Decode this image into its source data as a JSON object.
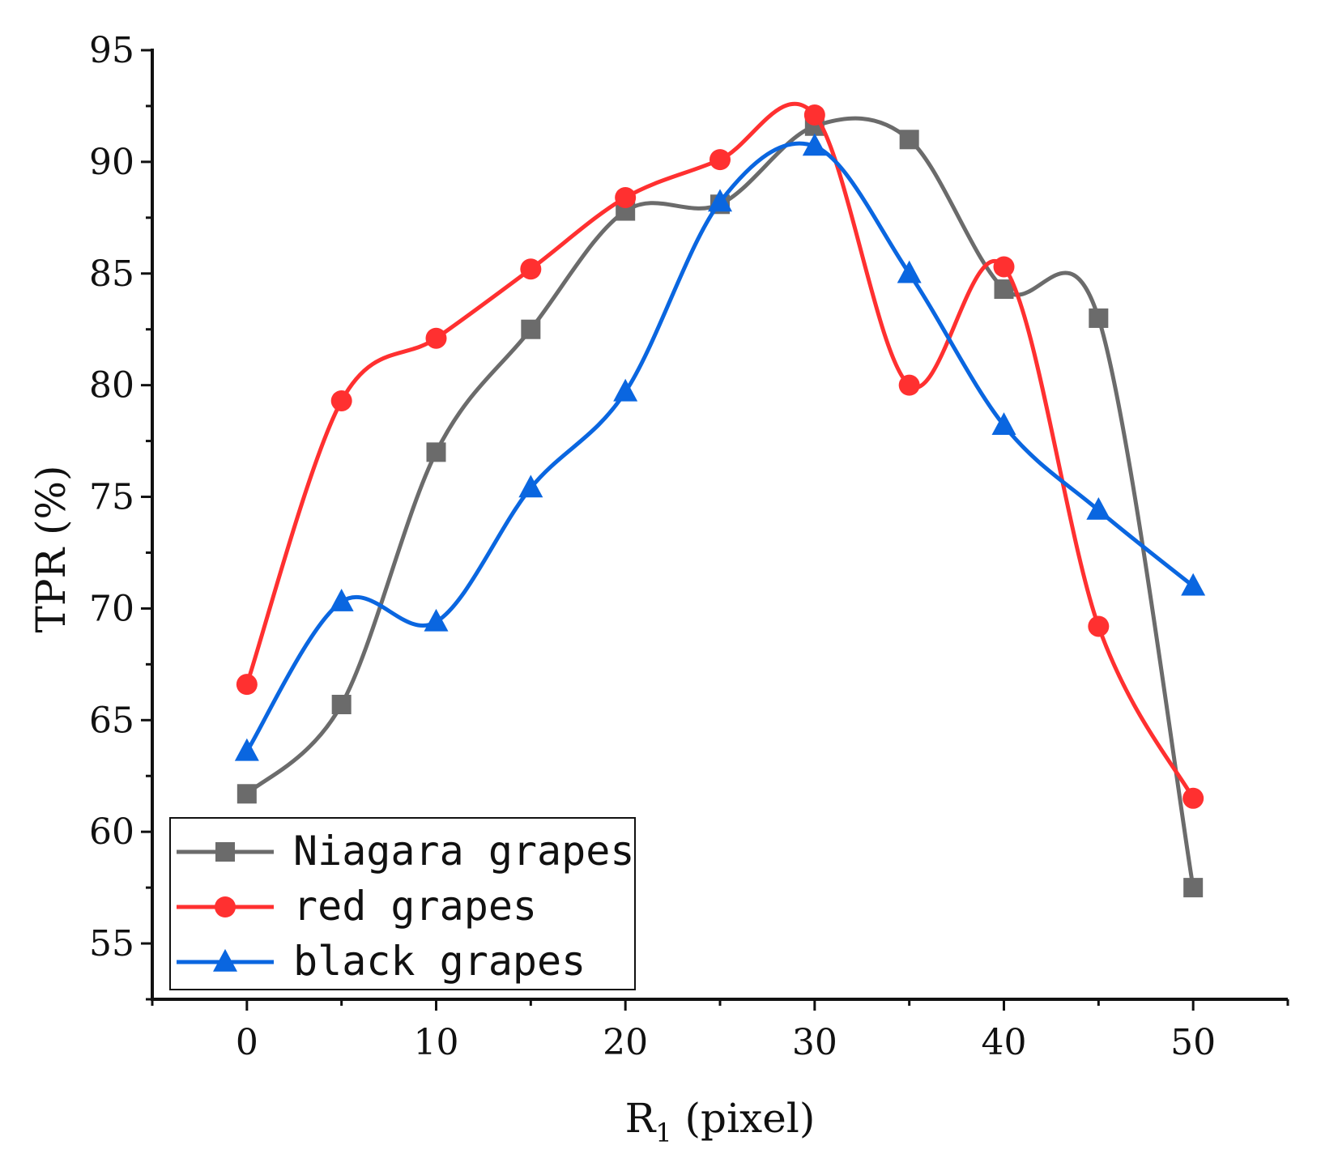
{
  "chart_data": {
    "type": "line",
    "title": "",
    "xlabel": "R",
    "xlabel_sub": "1",
    "xlabel_suffix": " (pixel)",
    "ylabel": "TPR (%)",
    "x": [
      0,
      5,
      10,
      15,
      20,
      25,
      30,
      35,
      40,
      45,
      50
    ],
    "xlim": [
      -5,
      55
    ],
    "ylim": [
      52.5,
      95
    ],
    "xticks": [
      0,
      10,
      20,
      30,
      40,
      50
    ],
    "yticks": [
      55,
      60,
      65,
      70,
      75,
      80,
      85,
      90,
      95
    ],
    "grid": false,
    "legend_position": "bottom-left",
    "series": [
      {
        "name": "Niagara grapes",
        "color": "#6b6b6b",
        "marker": "square",
        "values": [
          61.7,
          65.7,
          77.0,
          82.5,
          87.8,
          88.1,
          91.6,
          91.0,
          84.3,
          83.0,
          57.5
        ]
      },
      {
        "name": "red grapes",
        "color": "#ff3030",
        "marker": "circle",
        "values": [
          66.6,
          79.3,
          82.1,
          85.2,
          88.4,
          90.1,
          92.1,
          80.0,
          85.3,
          69.2,
          61.5
        ]
      },
      {
        "name": "black grapes",
        "color": "#0a66e0",
        "marker": "triangle",
        "values": [
          63.6,
          70.3,
          69.4,
          75.4,
          79.7,
          88.2,
          90.7,
          85.0,
          78.2,
          74.4,
          71.0
        ]
      }
    ]
  }
}
